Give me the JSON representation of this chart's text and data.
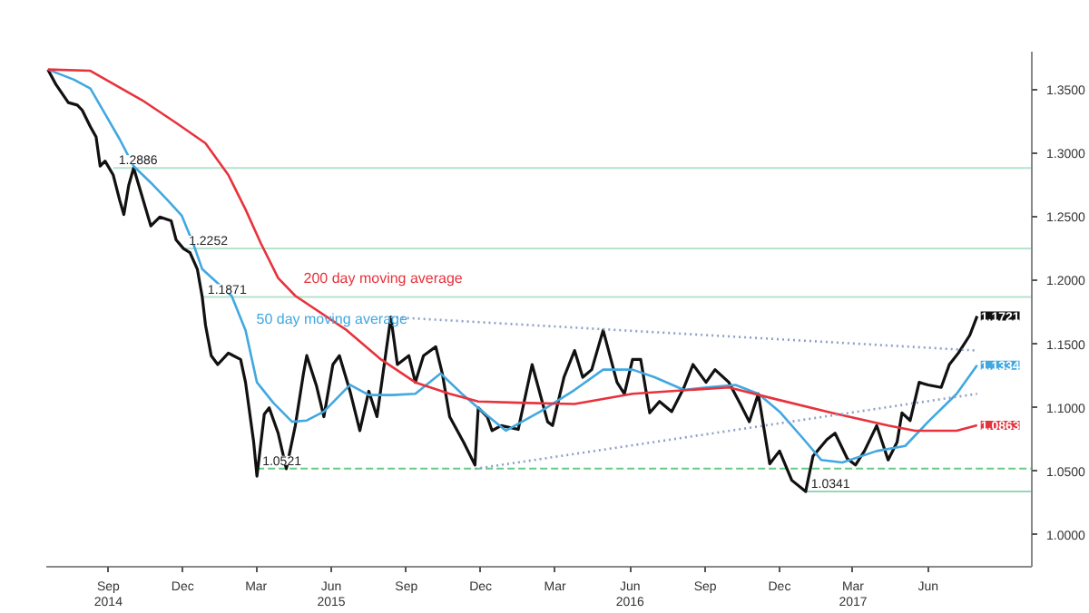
{
  "chart_data": {
    "type": "line",
    "xlim": [
      "2014-07-01",
      "2017-10-20"
    ],
    "ylim": [
      0.975,
      1.38
    ],
    "xticks": [
      {
        "value": "2014-09-15",
        "label": "Sep\n2014"
      },
      {
        "value": "2014-12-15",
        "label": "Dec"
      },
      {
        "value": "2015-03-15",
        "label": "Mar"
      },
      {
        "value": "2015-06-15",
        "label": "Jun\n2015"
      },
      {
        "value": "2015-09-15",
        "label": "Sep"
      },
      {
        "value": "2015-12-15",
        "label": "Dec"
      },
      {
        "value": "2016-03-15",
        "label": "Mar"
      },
      {
        "value": "2016-06-15",
        "label": "Jun\n2016"
      },
      {
        "value": "2016-09-15",
        "label": "Sep"
      },
      {
        "value": "2016-12-15",
        "label": "Dec"
      },
      {
        "value": "2017-03-15",
        "label": "Mar\n2017"
      },
      {
        "value": "2017-06-15",
        "label": "Jun"
      }
    ],
    "yticks": [
      {
        "value": 1.0,
        "label": "1.0000"
      },
      {
        "value": 1.05,
        "label": "1.0500"
      },
      {
        "value": 1.1,
        "label": "1.1000"
      },
      {
        "value": 1.15,
        "label": "1.1500"
      },
      {
        "value": 1.2,
        "label": "1.2000"
      },
      {
        "value": 1.25,
        "label": "1.2500"
      },
      {
        "value": 1.3,
        "label": "1.3000"
      },
      {
        "value": 1.35,
        "label": "1.3500"
      }
    ],
    "grid": false,
    "marker": "none",
    "series": [
      {
        "color": "#111111",
        "line_style": "solid",
        "x": [
          "2014-07-03",
          "2014-07-13",
          "2014-07-28",
          "2014-08-08",
          "2014-08-14",
          "2014-08-24",
          "2014-08-31",
          "2014-09-05",
          "2014-09-11",
          "2014-09-21",
          "2014-09-29",
          "2014-10-04",
          "2014-10-10",
          "2014-10-16",
          "2014-10-26",
          "2014-11-06",
          "2014-11-17",
          "2014-12-01",
          "2014-12-07",
          "2014-12-16",
          "2014-12-24",
          "2015-01-02",
          "2015-01-08",
          "2015-01-12",
          "2015-01-19",
          "2015-01-27",
          "2015-02-09",
          "2015-02-24",
          "2015-03-02",
          "2015-03-12",
          "2015-03-16",
          "2015-03-25",
          "2015-03-31",
          "2015-04-11",
          "2015-04-21",
          "2015-05-02",
          "2015-05-12",
          "2015-05-16",
          "2015-05-28",
          "2015-06-06",
          "2015-06-17",
          "2015-06-25",
          "2015-07-08",
          "2015-07-20",
          "2015-07-31",
          "2015-08-10",
          "2015-08-27",
          "2015-09-04",
          "2015-09-18",
          "2015-09-26",
          "2015-10-06",
          "2015-10-21",
          "2015-10-29",
          "2015-11-07",
          "2015-11-24",
          "2015-12-08",
          "2015-12-12",
          "2015-12-23",
          "2015-12-29",
          "2016-01-09",
          "2016-01-30",
          "2016-02-16",
          "2016-03-06",
          "2016-03-12",
          "2016-03-26",
          "2016-04-08",
          "2016-04-18",
          "2016-04-29",
          "2016-05-13",
          "2016-05-30",
          "2016-06-08",
          "2016-06-18",
          "2016-06-28",
          "2016-07-09",
          "2016-07-21",
          "2016-08-05",
          "2016-08-20",
          "2016-08-31",
          "2016-09-16",
          "2016-09-27",
          "2016-10-14",
          "2016-10-28",
          "2016-11-08",
          "2016-11-19",
          "2016-12-03",
          "2016-12-15",
          "2016-12-30",
          "2017-01-16",
          "2017-01-25",
          "2017-02-11",
          "2017-02-21",
          "2017-03-08",
          "2017-03-18",
          "2017-03-29",
          "2017-04-13",
          "2017-04-27",
          "2017-05-08",
          "2017-05-14",
          "2017-05-24",
          "2017-06-04",
          "2017-06-15",
          "2017-07-01",
          "2017-07-11",
          "2017-07-22",
          "2017-08-05",
          "2017-08-14"
        ],
        "values": [
          1.366,
          1.354,
          1.34,
          1.338,
          1.334,
          1.321,
          1.313,
          1.29,
          1.294,
          1.283,
          1.263,
          1.252,
          1.275,
          1.2886,
          1.267,
          1.243,
          1.25,
          1.247,
          1.232,
          1.2252,
          1.222,
          1.209,
          1.1871,
          1.165,
          1.141,
          1.134,
          1.143,
          1.138,
          1.12,
          1.073,
          1.0462,
          1.095,
          1.1,
          1.08,
          1.0521,
          1.086,
          1.127,
          1.141,
          1.117,
          1.093,
          1.134,
          1.141,
          1.113,
          1.082,
          1.113,
          1.093,
          1.1713,
          1.134,
          1.141,
          1.12,
          1.141,
          1.148,
          1.127,
          1.093,
          1.073,
          1.055,
          1.1,
          1.093,
          1.082,
          1.086,
          1.083,
          1.134,
          1.089,
          1.086,
          1.124,
          1.145,
          1.124,
          1.13,
          1.161,
          1.12,
          1.111,
          1.138,
          1.138,
          1.096,
          1.105,
          1.097,
          1.116,
          1.134,
          1.12,
          1.13,
          1.12,
          1.103,
          1.089,
          1.111,
          1.056,
          1.066,
          1.043,
          1.0341,
          1.062,
          1.075,
          1.08,
          1.06,
          1.055,
          1.066,
          1.086,
          1.059,
          1.073,
          1.096,
          1.09,
          1.12,
          1.118,
          1.116,
          1.134,
          1.143,
          1.157,
          1.1721
        ],
        "value_labels": [
          null,
          null,
          null,
          null,
          null,
          null,
          null,
          null,
          null,
          null,
          null,
          null,
          null,
          null,
          null,
          null,
          null,
          null,
          null,
          null,
          null,
          null,
          null,
          null,
          null,
          null,
          null,
          null,
          null,
          null,
          null,
          null,
          null,
          null,
          null,
          null,
          null,
          null,
          null,
          null,
          null,
          null,
          null,
          null,
          null,
          null,
          null,
          null,
          null,
          null,
          null,
          null,
          null,
          null,
          null,
          null,
          null,
          null,
          null,
          null,
          null,
          null,
          null,
          null,
          null,
          null,
          null,
          null,
          null,
          null,
          null,
          null,
          null,
          null,
          null,
          null,
          null,
          null,
          null,
          null,
          null,
          null,
          null,
          null,
          null,
          null,
          null,
          null,
          null,
          null,
          null,
          null,
          null,
          null,
          null,
          null,
          null,
          null,
          null,
          null,
          null,
          null,
          null,
          null,
          null,
          "1.1721"
        ]
      },
      {
        "name": "50 day moving average",
        "color": "#41a8e0",
        "line_style": "solid",
        "x": [
          "2014-07-03",
          "2014-08-04",
          "2014-08-24",
          "2014-09-11",
          "2014-09-29",
          "2014-10-16",
          "2014-11-06",
          "2014-11-27",
          "2014-12-14",
          "2014-12-28",
          "2015-01-08",
          "2015-02-13",
          "2015-03-02",
          "2015-03-16",
          "2015-04-05",
          "2015-04-28",
          "2015-05-16",
          "2015-06-06",
          "2015-07-08",
          "2015-07-31",
          "2015-08-29",
          "2015-09-26",
          "2015-10-27",
          "2015-11-22",
          "2015-12-19",
          "2016-01-15",
          "2016-02-26",
          "2016-04-08",
          "2016-05-13",
          "2016-06-18",
          "2016-07-15",
          "2016-08-20",
          "2016-09-16",
          "2016-10-22",
          "2016-11-19",
          "2016-12-15",
          "2017-01-14",
          "2017-02-04",
          "2017-03-02",
          "2017-04-13",
          "2017-05-18",
          "2017-06-15",
          "2017-07-20",
          "2017-08-14"
        ],
        "values": [
          1.366,
          1.358,
          1.351,
          1.331,
          1.311,
          1.29,
          1.277,
          1.263,
          1.251,
          1.229,
          1.209,
          1.188,
          1.161,
          1.12,
          1.104,
          1.089,
          1.09,
          1.097,
          1.118,
          1.11,
          1.11,
          1.111,
          1.127,
          1.111,
          1.096,
          1.082,
          1.097,
          1.114,
          1.13,
          1.13,
          1.124,
          1.114,
          1.116,
          1.118,
          1.111,
          1.097,
          1.075,
          1.059,
          1.057,
          1.066,
          1.07,
          1.089,
          1.111,
          1.1334
        ],
        "value_labels": [
          null,
          null,
          null,
          null,
          null,
          null,
          null,
          null,
          null,
          null,
          null,
          null,
          null,
          null,
          null,
          null,
          null,
          null,
          null,
          null,
          null,
          null,
          null,
          null,
          null,
          null,
          null,
          null,
          null,
          null,
          null,
          null,
          null,
          null,
          null,
          null,
          null,
          null,
          null,
          null,
          null,
          null,
          null,
          "1.1334"
        ]
      },
      {
        "name": "200 day moving average",
        "color": "#e8323c",
        "line_style": "solid",
        "x": [
          "2014-07-03",
          "2014-08-24",
          "2014-10-26",
          "2014-12-07",
          "2015-01-12",
          "2015-02-09",
          "2015-03-02",
          "2015-03-21",
          "2015-04-11",
          "2015-05-02",
          "2015-07-04",
          "2015-08-15",
          "2015-09-26",
          "2015-11-07",
          "2015-12-12",
          "2016-01-30",
          "2016-04-08",
          "2016-06-18",
          "2016-08-26",
          "2016-10-14",
          "2016-12-09",
          "2017-02-17",
          "2017-04-27",
          "2017-05-30",
          "2017-07-20",
          "2017-08-14"
        ],
        "values": [
          1.366,
          1.365,
          1.342,
          1.324,
          1.308,
          1.283,
          1.256,
          1.229,
          1.202,
          1.188,
          1.161,
          1.138,
          1.12,
          1.111,
          1.105,
          1.104,
          1.103,
          1.111,
          1.114,
          1.116,
          1.107,
          1.096,
          1.086,
          1.082,
          1.082,
          1.0863
        ],
        "value_labels": [
          null,
          null,
          null,
          null,
          null,
          null,
          null,
          null,
          null,
          null,
          null,
          null,
          null,
          null,
          null,
          null,
          null,
          null,
          null,
          null,
          null,
          null,
          null,
          null,
          null,
          "1.0863"
        ]
      },
      {
        "color": "#8f9fc8",
        "line_style": "dotted",
        "x": [
          "2015-08-27",
          "2017-08-14"
        ],
        "values": [
          1.1713,
          1.145
        ]
      },
      {
        "color": "#8f9fc8",
        "line_style": "dotted",
        "x": [
          "2015-12-08",
          "2017-08-14"
        ],
        "values": [
          1.052,
          1.111
        ]
      }
    ],
    "ref_lines": [
      {
        "axis": "y",
        "value": 1.2886,
        "label": "1.2886",
        "color": "#b5e3cc",
        "line_style": "solid"
      },
      {
        "axis": "y",
        "value": 1.2252,
        "label": "1.2252",
        "color": "#b5e3cc",
        "line_style": "solid"
      },
      {
        "axis": "y",
        "value": 1.1871,
        "label": "1.1871",
        "color": "#b5e3cc",
        "line_style": "solid"
      },
      {
        "axis": "y",
        "value": 1.0521,
        "label": "1.0521",
        "color": "#66cc88",
        "line_style": "dashed"
      },
      {
        "axis": "y",
        "value": 1.0341,
        "label": "1.0341",
        "color": "#9ad6b6",
        "line_style": "solid"
      }
    ]
  }
}
